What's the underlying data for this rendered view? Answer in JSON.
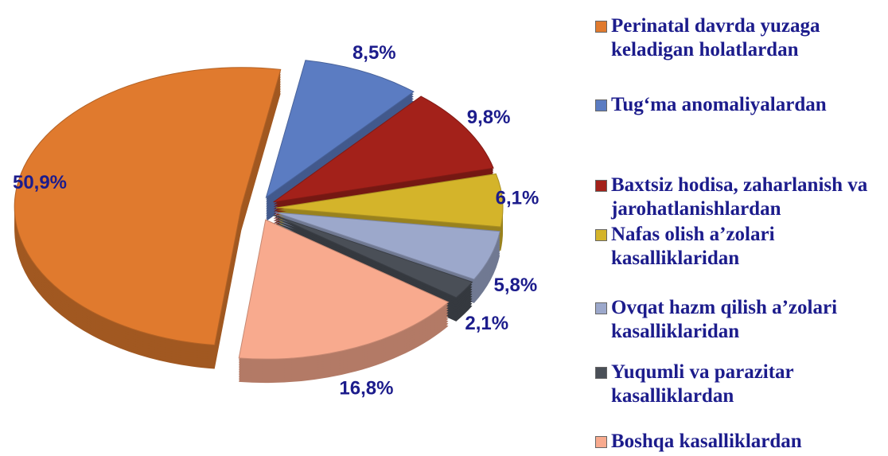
{
  "chart_data": {
    "type": "pie",
    "categories": [
      "Perinatal davrda yuzaga keladigan holatlardan",
      "Tug‘ma anomaliyalardan",
      "Baxtsiz hodisa, zaharlanish va jarohatlanishlardan",
      "Nafas olish a’zolari kasalliklaridan",
      "Ovqat hazm qilish a’zolari kasalliklaridan",
      "Yuqumli va parazitar kasalliklardan",
      "Boshqa kasalliklardan"
    ],
    "values": [
      50.9,
      8.5,
      9.8,
      6.1,
      5.8,
      2.1,
      16.8
    ],
    "value_labels": [
      "50,9%",
      "8,5%",
      "9,8%",
      "6,1%",
      "5,8%",
      "2,1%",
      "16,8%"
    ],
    "colors": [
      "#e07a2e",
      "#5b7cc2",
      "#a3211a",
      "#d4b42a",
      "#9ca8cb",
      "#4a4f57",
      "#f8aa8e"
    ],
    "legend": "right"
  }
}
